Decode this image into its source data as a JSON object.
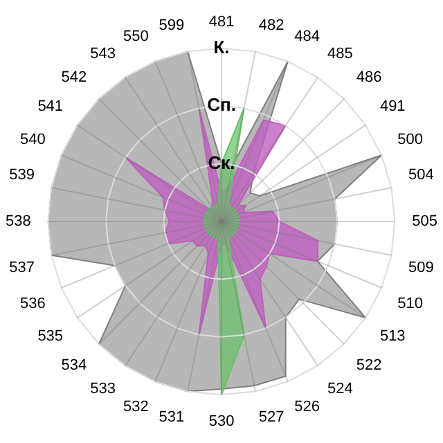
{
  "chart_data": {
    "type": "radar",
    "categories": [
      "481",
      "482",
      "484",
      "485",
      "486",
      "491",
      "500",
      "504",
      "505",
      "509",
      "510",
      "513",
      "522",
      "524",
      "526",
      "527",
      "530",
      "531",
      "532",
      "533",
      "534",
      "535",
      "536",
      "537",
      "538",
      "539",
      "540",
      "541",
      "542",
      "543",
      "550",
      "599"
    ],
    "series": [
      {
        "color": "#b3b3b3",
        "values": [
          1.0,
          1.0,
          3.0,
          1.0,
          0.7,
          0.8,
          3.0,
          2.0,
          2.0,
          2.0,
          1.8,
          3.0,
          1.9,
          2.0,
          2.9,
          2.9,
          2.9,
          3.0,
          3.0,
          3.0,
          3.0,
          2.0,
          2.0,
          3.0,
          3.0,
          3.0,
          3.0,
          3.0,
          3.0,
          3.0,
          3.0,
          3.0
        ]
      },
      {
        "color": "#bf5fbf",
        "values": [
          0.5,
          0.6,
          1.9,
          2.0,
          0.4,
          0.5,
          0.4,
          0.9,
          1.0,
          1.7,
          1.8,
          1.0,
          1.1,
          1.2,
          2.0,
          0.4,
          0.4,
          2.0,
          0.6,
          0.5,
          0.6,
          0.6,
          1.0,
          1.0,
          0.9,
          1.0,
          1.1,
          2.0,
          0.3,
          0.3,
          0.4,
          2.0
        ]
      },
      {
        "color": "#66c066",
        "values": [
          1.0,
          2.0,
          0.3,
          0.3,
          0.3,
          0.3,
          0.3,
          0.3,
          0.3,
          0.3,
          0.3,
          0.3,
          0.3,
          0.3,
          0.3,
          2.0,
          3.0,
          0.3,
          0.3,
          0.3,
          0.3,
          0.3,
          0.3,
          0.3,
          0.3,
          0.3,
          0.3,
          0.3,
          0.3,
          0.3,
          0.3,
          0.3
        ]
      }
    ],
    "ylim": [
      0,
      3
    ],
    "yticks": [
      {
        "value": 1,
        "label": "Ск."
      },
      {
        "value": 2,
        "label": "Сп."
      },
      {
        "value": 3,
        "label": "К."
      }
    ],
    "grid": true,
    "legend": false,
    "marker": "none"
  }
}
